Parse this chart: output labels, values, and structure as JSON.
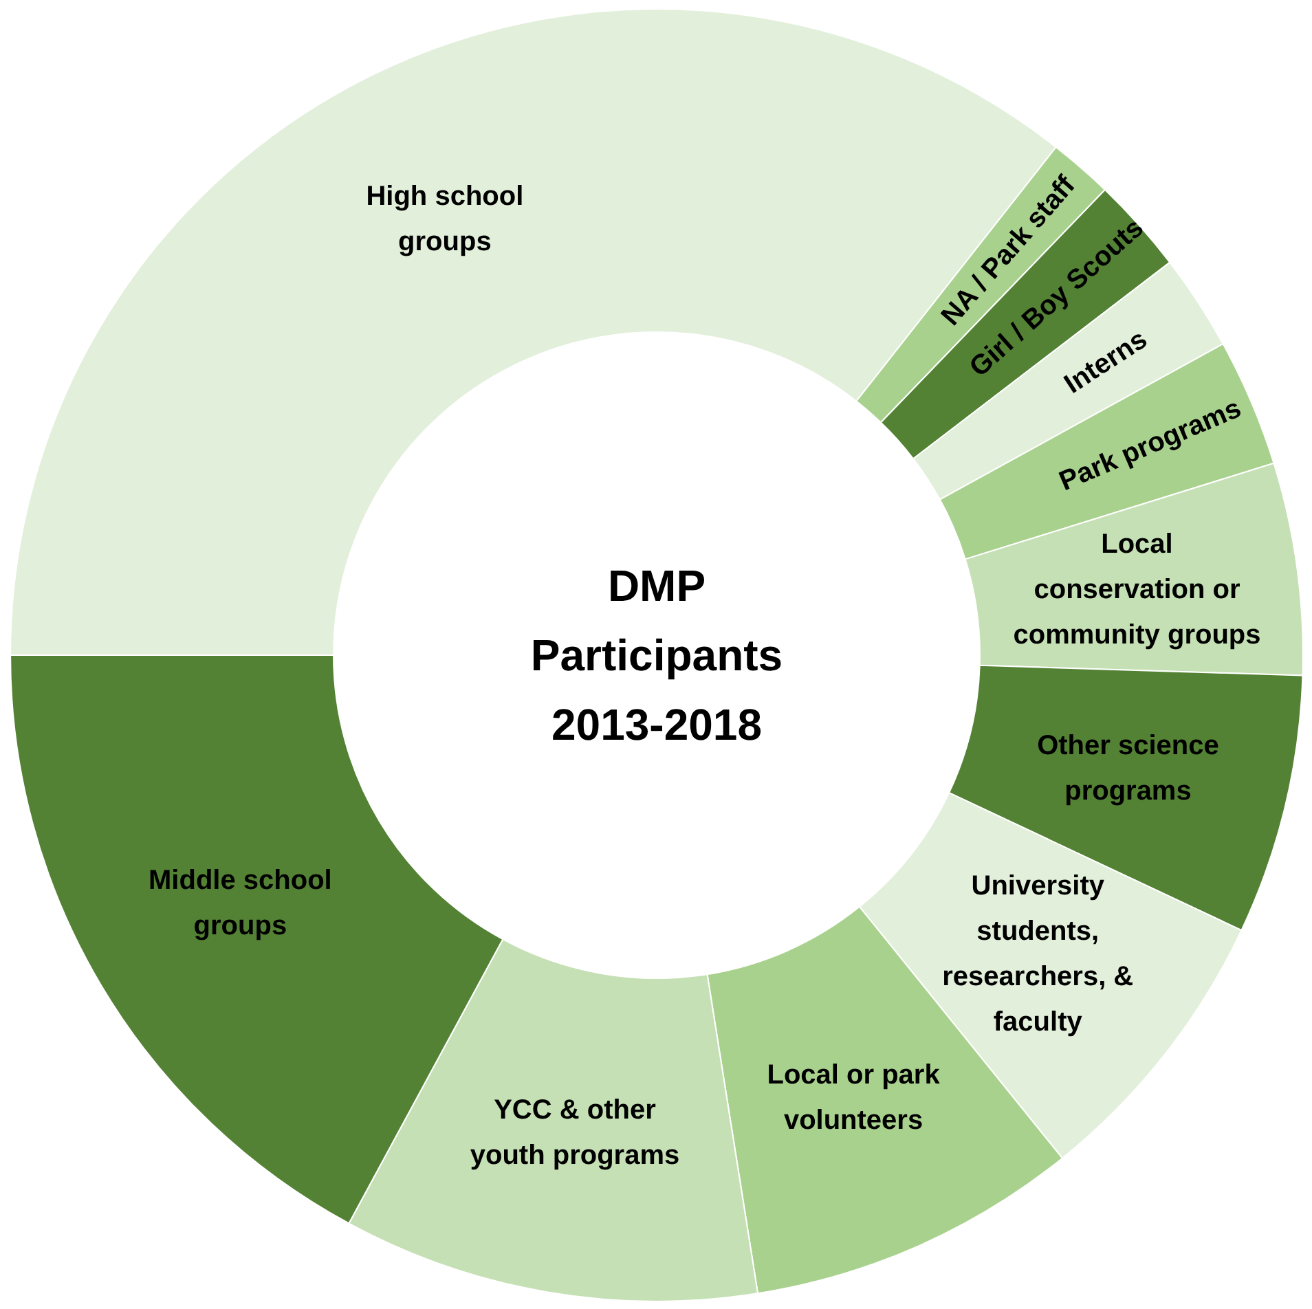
{
  "chart_data": {
    "type": "donut",
    "title": "DMP Participants 2013-2018",
    "categories": [
      "High school groups",
      "NA / Park staff",
      "Girl / Boy Scouts",
      "Interns",
      "Park programs",
      "Local conservation or community groups",
      "Other science programs",
      "University students, researchers, & faculty",
      "Local or park volunteers",
      "YCC & other youth programs",
      "Middle school groups"
    ],
    "values": [
      35.6,
      1.6,
      2.4,
      2.4,
      3.2,
      5.3,
      6.5,
      7.2,
      8.3,
      10.4,
      17.1
    ],
    "colors": [
      "#e2efda",
      "#a9d18e",
      "#548235",
      "#e2efda",
      "#a9d18e",
      "#c5e0b4",
      "#548235",
      "#e2efda",
      "#a9d18e",
      "#c5e0b4",
      "#548235"
    ]
  }
}
